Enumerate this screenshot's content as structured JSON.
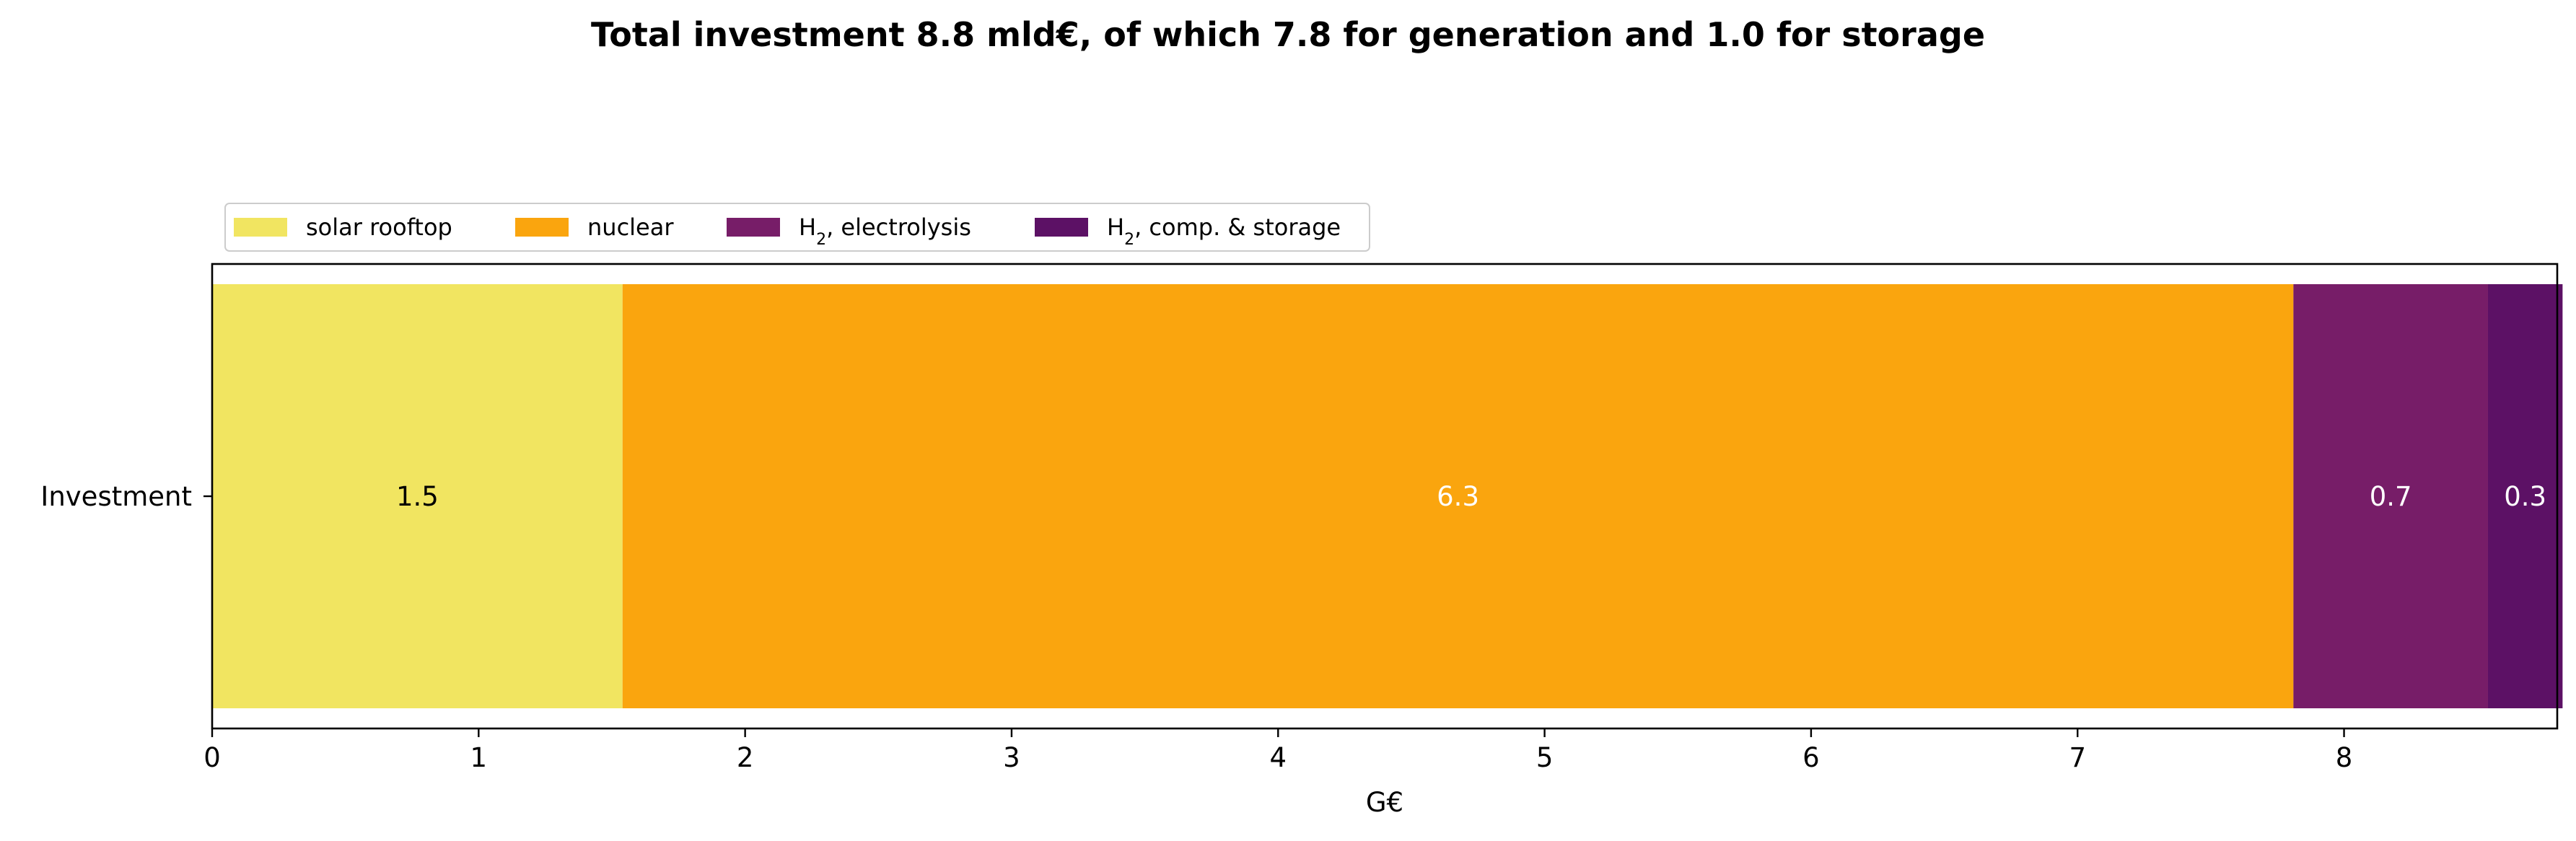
{
  "chart_data": {
    "type": "bar",
    "orientation": "horizontal",
    "stacked": true,
    "title": "Total investment 8.8 mld€, of which 7.8 for generation and 1.0 for storage",
    "xlabel": "G€",
    "ylabel": "",
    "categories": [
      "Investment"
    ],
    "xlim": [
      0,
      8.8
    ],
    "xticks": [
      0,
      1,
      2,
      3,
      4,
      5,
      6,
      7,
      8
    ],
    "grid": false,
    "legend_position": "top-left",
    "legend_columns": 4,
    "series": [
      {
        "name": "solar rooftop",
        "values": [
          1.54
        ],
        "label": "1.5",
        "color": "#f1e561",
        "label_color": "#000000"
      },
      {
        "name": "nuclear",
        "values": [
          6.27
        ],
        "label": "6.3",
        "color": "#faa50e",
        "label_color": "#ffffff"
      },
      {
        "name": "H2, electrolysis",
        "values": [
          0.73
        ],
        "label": "0.7",
        "color": "#771d68",
        "label_color": "#ffffff"
      },
      {
        "name": "H2, comp. & storage",
        "values": [
          0.28
        ],
        "label": "0.3",
        "color": "#5c1165",
        "label_color": "#ffffff"
      }
    ]
  }
}
